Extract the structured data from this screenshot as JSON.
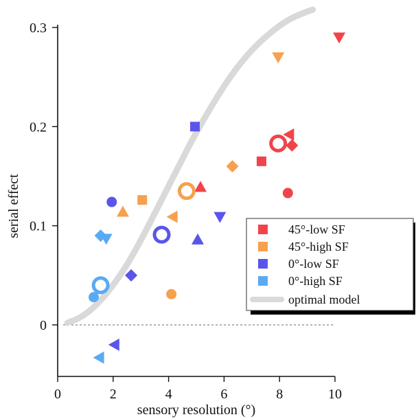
{
  "chart_data": {
    "type": "scatter",
    "title": "",
    "xlabel": "sensory resolution (°)",
    "ylabel": "serial effect",
    "xlim": [
      0,
      10
    ],
    "ylim": [
      -0.05,
      0.3
    ],
    "xticks": [
      "0",
      "2",
      "4",
      "6",
      "8",
      "10"
    ],
    "yticks": [
      "0",
      "0.1",
      "0.2",
      "0.3"
    ],
    "zero_reference_line": 0,
    "grid": false,
    "legend_position": "bottom-right",
    "series": [
      {
        "name": "45°-low SF",
        "color": "#f0444a",
        "points": [
          {
            "x": 10.15,
            "y": 0.29,
            "marker": "triangle-down"
          },
          {
            "x": 8.35,
            "y": 0.192,
            "marker": "triangle-left"
          },
          {
            "x": 8.45,
            "y": 0.181,
            "marker": "diamond"
          },
          {
            "x": 7.35,
            "y": 0.165,
            "marker": "square"
          },
          {
            "x": 8.3,
            "y": 0.133,
            "marker": "circle"
          },
          {
            "x": 5.15,
            "y": 0.139,
            "marker": "triangle-up"
          }
        ],
        "mean": {
          "x": 7.95,
          "y": 0.183
        }
      },
      {
        "name": "45°-high SF",
        "color": "#f7a04e",
        "points": [
          {
            "x": 7.95,
            "y": 0.27,
            "marker": "triangle-down"
          },
          {
            "x": 6.3,
            "y": 0.16,
            "marker": "diamond"
          },
          {
            "x": 3.05,
            "y": 0.126,
            "marker": "square"
          },
          {
            "x": 2.35,
            "y": 0.114,
            "marker": "triangle-up"
          },
          {
            "x": 4.15,
            "y": 0.109,
            "marker": "triangle-left"
          },
          {
            "x": 4.1,
            "y": 0.031,
            "marker": "circle"
          }
        ],
        "mean": {
          "x": 4.65,
          "y": 0.135
        }
      },
      {
        "name": "0°-low SF",
        "color": "#5a55ea",
        "points": [
          {
            "x": 4.95,
            "y": 0.2,
            "marker": "square"
          },
          {
            "x": 1.95,
            "y": 0.124,
            "marker": "circle"
          },
          {
            "x": 5.85,
            "y": 0.109,
            "marker": "triangle-down"
          },
          {
            "x": 5.05,
            "y": 0.086,
            "marker": "triangle-up"
          },
          {
            "x": 2.65,
            "y": 0.05,
            "marker": "diamond"
          },
          {
            "x": 2.05,
            "y": -0.02,
            "marker": "triangle-left"
          }
        ],
        "mean": {
          "x": 3.75,
          "y": 0.091
        }
      },
      {
        "name": "0°-high SF",
        "color": "#5aaaf3",
        "points": [
          {
            "x": 1.55,
            "y": 0.09,
            "marker": "diamond"
          },
          {
            "x": 1.75,
            "y": 0.087,
            "marker": "triangle-down"
          },
          {
            "x": 1.3,
            "y": 0.028,
            "marker": "circle"
          },
          {
            "x": 1.5,
            "y": -0.033,
            "marker": "triangle-left"
          }
        ],
        "mean": {
          "x": 1.55,
          "y": 0.04
        }
      },
      {
        "name": "optimal model",
        "color": "#d9d9d9",
        "type": "line",
        "x": [
          0.35,
          0.8,
          1.2,
          1.6,
          2.0,
          2.4,
          2.8,
          3.2,
          3.6,
          4.0,
          4.4,
          4.8,
          5.2,
          5.6,
          6.0,
          6.4,
          6.8,
          7.2,
          7.6,
          8.0,
          8.4,
          8.8,
          9.2
        ],
        "y": [
          0.002,
          0.007,
          0.015,
          0.026,
          0.04,
          0.056,
          0.075,
          0.096,
          0.118,
          0.14,
          0.162,
          0.184,
          0.204,
          0.223,
          0.241,
          0.257,
          0.271,
          0.283,
          0.293,
          0.302,
          0.309,
          0.314,
          0.318
        ]
      }
    ]
  }
}
